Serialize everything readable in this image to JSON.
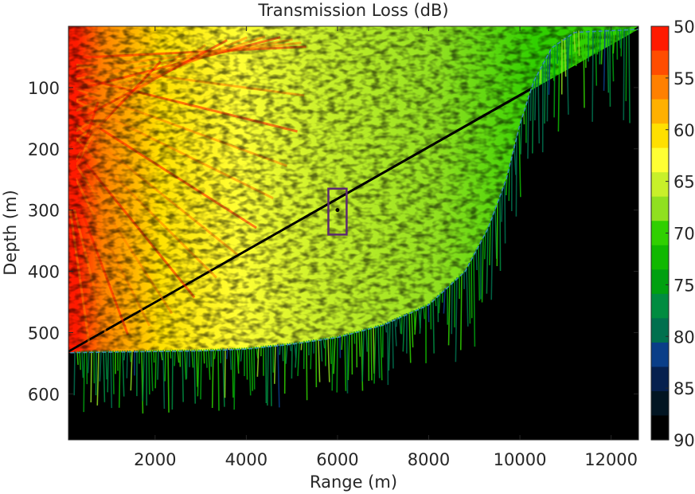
{
  "chart_data": {
    "type": "heatmap",
    "title": "Transmission Loss (dB)",
    "xlabel": "Range (m)",
    "ylabel": "Depth (m)",
    "xlim": [
      100,
      12600
    ],
    "ylim": [
      675,
      0
    ],
    "x_ticks": [
      2000,
      4000,
      6000,
      8000,
      10000,
      12000
    ],
    "y_ticks": [
      100,
      200,
      300,
      400,
      500,
      600
    ],
    "x_tick_labels": [
      "2000",
      "4000",
      "6000",
      "8000",
      "10000",
      "12000"
    ],
    "y_tick_labels": [
      "100",
      "200",
      "300",
      "400",
      "500",
      "600"
    ],
    "colorbar": {
      "range": [
        50,
        90
      ],
      "ticks": [
        50,
        55,
        60,
        65,
        70,
        75,
        80,
        85,
        90
      ],
      "tick_labels": [
        "50",
        "55",
        "60",
        "65",
        "70",
        "75",
        "80",
        "85",
        "90"
      ],
      "levels": [
        50,
        52.5,
        55,
        57.5,
        60,
        62.5,
        65,
        67.5,
        70,
        72.5,
        75,
        77.5,
        80,
        82.5,
        85,
        87.5,
        90
      ],
      "colors": [
        "#ff1a00",
        "#ff4d00",
        "#ff8000",
        "#ffb000",
        "#ffe000",
        "#ffff33",
        "#c8f02a",
        "#90e020",
        "#30d000",
        "#10b800",
        "#00a010",
        "#008c40",
        "#00704e",
        "#0a3e88",
        "#06204e",
        "#021522",
        "#000000"
      ]
    },
    "source": {
      "range": 6000,
      "depth": 300
    },
    "source_box": {
      "range_min": 5800,
      "range_max": 6200,
      "depth_min": 265,
      "depth_max": 340
    },
    "bathymetry": [
      {
        "range": 0,
        "depth": 533
      },
      {
        "range": 1000,
        "depth": 532
      },
      {
        "range": 2000,
        "depth": 531
      },
      {
        "range": 3000,
        "depth": 530
      },
      {
        "range": 4000,
        "depth": 527
      },
      {
        "range": 5000,
        "depth": 519
      },
      {
        "range": 6000,
        "depth": 508
      },
      {
        "range": 7000,
        "depth": 488
      },
      {
        "range": 8000,
        "depth": 455
      },
      {
        "range": 8800,
        "depth": 400
      },
      {
        "range": 9300,
        "depth": 330
      },
      {
        "range": 9700,
        "depth": 250
      },
      {
        "range": 10000,
        "depth": 160
      },
      {
        "range": 10300,
        "depth": 90
      },
      {
        "range": 10700,
        "depth": 35
      },
      {
        "range": 11200,
        "depth": 10
      },
      {
        "range": 12600,
        "depth": 5
      }
    ]
  }
}
